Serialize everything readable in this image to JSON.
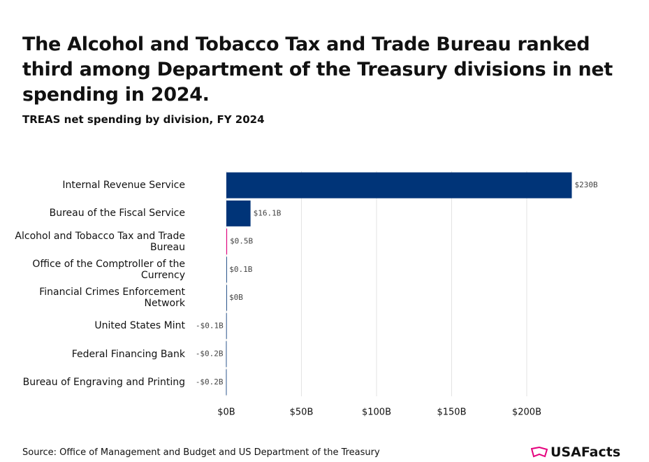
{
  "chart_data": {
    "type": "bar",
    "orientation": "horizontal",
    "title": "The Alcohol and Tobacco Tax and Trade Bureau ranked third among Department of the Treasury divisions in net spending in 2024.",
    "subtitle": "TREAS net spending by division, FY 2024",
    "categories": [
      "Internal Revenue Service",
      "Bureau of the Fiscal Service",
      "Alcohol and Tobacco Tax and Trade Bureau",
      "Office of the Comptroller of the Currency",
      "Financial Crimes Enforcement Network",
      "United States Mint",
      "Federal Financing Bank",
      "Bureau of Engraving and Printing"
    ],
    "values": [
      230,
      16.1,
      0.5,
      0.1,
      0,
      -0.1,
      -0.2,
      -0.2
    ],
    "value_labels": [
      "$230B",
      "$16.1B",
      "$0.5B",
      "$0.1B",
      "$0B",
      "-$0.1B",
      "-$0.2B",
      "-$0.2B"
    ],
    "colors": [
      "#003478",
      "#003478",
      "#e5007d",
      "#003478",
      "#003478",
      "#003478",
      "#003478",
      "#003478"
    ],
    "xlim": [
      -20,
      250
    ],
    "xticks": [
      {
        "value": 0,
        "label": "$0B"
      },
      {
        "value": 50,
        "label": "$50B"
      },
      {
        "value": 100,
        "label": "$100B"
      },
      {
        "value": 150,
        "label": "$150B"
      },
      {
        "value": 200,
        "label": "$200B"
      }
    ],
    "grid": true,
    "source": "Source: Office of Management and Budget and US Department of the Treasury",
    "logo": "USAFacts"
  }
}
